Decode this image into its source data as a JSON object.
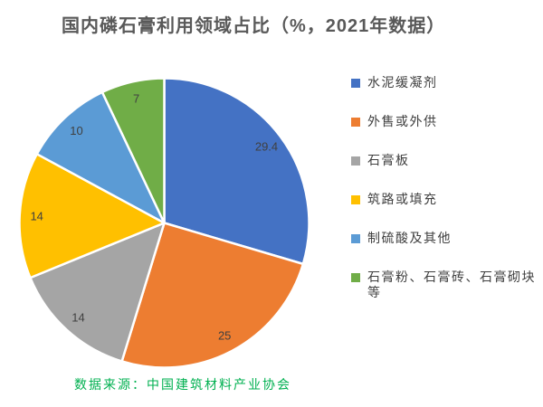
{
  "title": "国内磷石膏利用领域占比（%，2021年数据）",
  "source_note": "数据来源：中国建筑材料产业协会",
  "colors": {
    "title_text": "#595959",
    "data_label_text": "#404040",
    "legend_text": "#404040",
    "source_note_text": "#00B050",
    "slice_separator": "#FFFFFF",
    "background": "#FFFFFF"
  },
  "chart_data": {
    "type": "pie",
    "title": "国内磷石膏利用领域占比（%，2021年数据）",
    "unit": "%",
    "categories": [
      "水泥缓凝剂",
      "外售或外供",
      "石膏板",
      "筑路或填充",
      "制硫酸及其他",
      "石膏粉、石膏砖、石膏砌块等"
    ],
    "values": [
      29.4,
      25,
      14,
      14,
      10,
      7
    ],
    "labels": [
      "29.4",
      "25",
      "14",
      "14",
      "10",
      "7"
    ],
    "colors": [
      "#4472C4",
      "#ED7D31",
      "#A5A5A5",
      "#FFC000",
      "#5B9BD5",
      "#70AD47"
    ],
    "start_angle_deg": 0,
    "direction": "clockwise",
    "legend_position": "right",
    "data_labels": "inside"
  }
}
